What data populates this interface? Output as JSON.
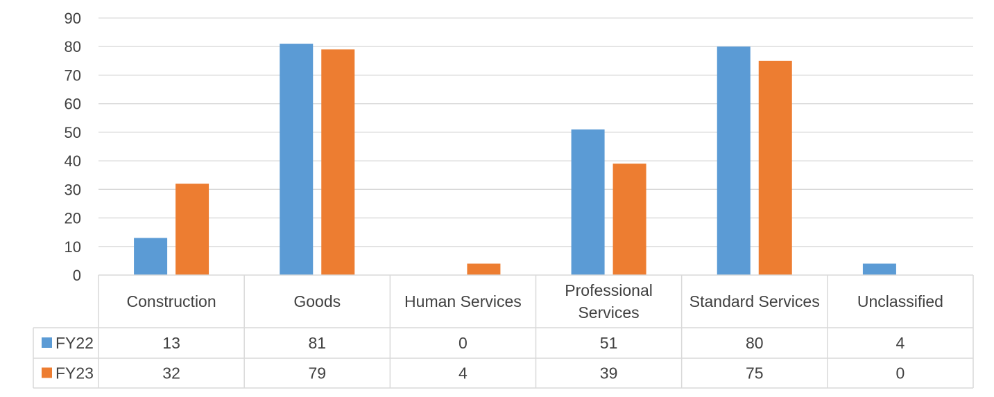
{
  "chart_data": {
    "type": "bar",
    "categories": [
      "Construction",
      "Goods",
      "Human Services",
      "Professional Services",
      "Standard Services",
      "Unclassified"
    ],
    "series": [
      {
        "name": "FY22",
        "values": [
          13,
          81,
          0,
          51,
          80,
          4
        ],
        "color": "#5B9BD5"
      },
      {
        "name": "FY23",
        "values": [
          32,
          79,
          4,
          39,
          75,
          0
        ],
        "color": "#ED7D31"
      }
    ],
    "ylim": [
      0,
      90
    ],
    "yticks": [
      0,
      10,
      20,
      30,
      40,
      50,
      60,
      70,
      80,
      90
    ],
    "grid": true,
    "legend": "data-table",
    "data_table": true
  }
}
